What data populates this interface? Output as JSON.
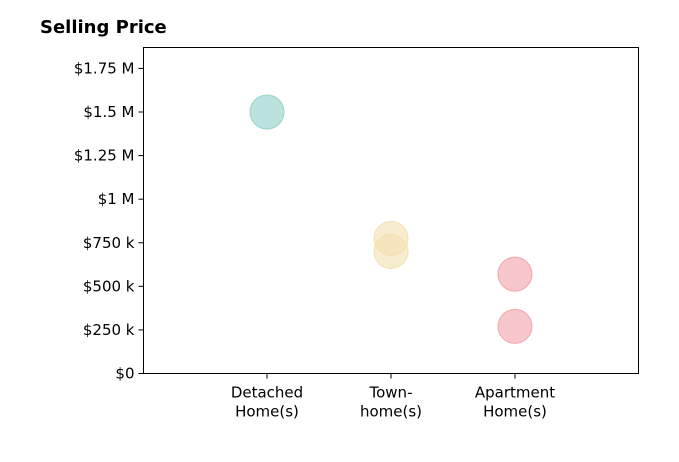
{
  "chart_data": {
    "type": "scatter",
    "title": "Selling Price",
    "xlabel": "",
    "ylabel": "",
    "categories": [
      "Detached\nHome(s)",
      "Town-\nhome(s)",
      "Apartment\nHome(s)"
    ],
    "ylim": [
      0,
      1870000
    ],
    "yticks": [
      0,
      250000,
      500000,
      750000,
      1000000,
      1250000,
      1500000,
      1750000
    ],
    "ytick_labels": [
      "$0",
      "$250 k",
      "$500 k",
      "$750 k",
      "$1 M",
      "$1.25 M",
      "$1.5 M",
      "$1.75 M"
    ],
    "grid": false,
    "points": [
      {
        "category": "Detached\nHome(s)",
        "y": 1500000,
        "color": "#8ecfc7"
      },
      {
        "category": "Town-\nhome(s)",
        "y": 775000,
        "color": "#f3dfaf"
      },
      {
        "category": "Town-\nhome(s)",
        "y": 700000,
        "color": "#f3dfaf"
      },
      {
        "category": "Apartment\nHome(s)",
        "y": 570000,
        "color": "#f2a1a8"
      },
      {
        "category": "Apartment\nHome(s)",
        "y": 270000,
        "color": "#f2a1a8"
      }
    ]
  }
}
